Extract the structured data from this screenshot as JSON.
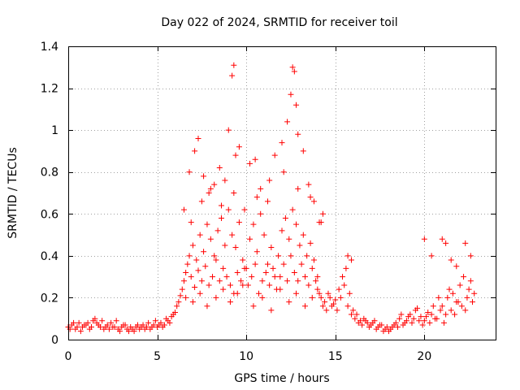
{
  "chart_data": {
    "type": "scatter",
    "title": "Day 022 of 2024, SRMTID for receiver toil",
    "xlabel": "GPS time / hours",
    "ylabel": "SRMTID / TECUs",
    "xlim": [
      0,
      24
    ],
    "ylim": [
      0,
      1.4
    ],
    "xticks": [
      0,
      5,
      10,
      15,
      20
    ],
    "xtick_labels": [
      "0",
      "5",
      "10",
      "15",
      "20"
    ],
    "yticks": [
      0,
      0.2,
      0.4,
      0.6,
      0.8,
      1.0,
      1.2,
      1.4
    ],
    "ytick_labels": [
      "0",
      "0.2",
      "0.4",
      "0.6",
      "0.8",
      "1",
      "1.2",
      "1.4"
    ],
    "grid": true,
    "marker": "+",
    "color": "#ff0000",
    "series": [
      {
        "name": "SRMTID",
        "x": [
          0.0,
          0.2,
          0.4,
          0.6,
          0.8,
          1.0,
          1.2,
          1.4,
          1.6,
          1.8,
          2.0,
          2.2,
          2.4,
          2.6,
          2.8,
          3.0,
          3.2,
          3.4,
          3.6,
          3.8,
          4.0,
          4.2,
          4.4,
          4.6,
          4.8,
          5.0,
          5.2,
          5.4,
          5.6,
          5.8,
          6.0,
          6.2,
          6.4,
          6.6,
          6.8,
          7.0,
          7.2,
          7.4,
          7.6,
          7.8,
          8.0,
          8.2,
          8.4,
          8.6,
          8.8,
          9.0,
          9.2,
          9.4,
          9.6,
          9.8,
          10.0,
          10.2,
          10.4,
          10.6,
          10.8,
          11.0,
          11.2,
          11.4,
          11.6,
          11.8,
          12.0,
          12.2,
          12.4,
          12.6,
          12.8,
          13.0,
          13.2,
          13.4,
          13.6,
          13.8,
          14.0,
          14.2,
          14.4,
          14.6,
          14.8,
          15.0,
          15.2,
          15.4,
          15.6,
          15.8,
          16.0,
          16.2,
          16.4,
          16.6,
          16.8,
          17.0,
          17.2,
          17.4,
          17.6,
          17.8,
          18.0,
          18.2,
          18.4,
          18.6,
          18.8,
          19.0,
          19.2,
          19.4,
          19.6,
          19.8,
          20.0,
          20.2,
          20.4,
          20.6,
          20.8,
          21.0,
          21.2,
          21.4,
          21.6,
          21.8,
          22.0,
          22.2,
          22.4,
          22.6,
          22.8,
          0.1,
          0.3,
          0.5,
          0.7,
          0.9,
          1.1,
          1.3,
          1.5,
          1.7,
          1.9,
          2.1,
          2.3,
          2.5,
          2.7,
          2.9,
          3.1,
          3.3,
          3.5,
          3.7,
          3.9,
          4.1,
          4.3,
          4.5,
          4.7,
          4.9,
          5.1,
          5.3,
          5.5,
          5.7,
          5.9,
          6.1,
          6.3,
          6.5,
          6.7,
          6.9,
          7.1,
          7.3,
          7.5,
          7.7,
          7.9,
          8.1,
          8.3,
          8.5,
          8.7,
          8.9,
          9.1,
          9.3,
          9.5,
          9.7,
          9.9,
          10.1,
          10.3,
          10.5,
          10.7,
          10.9,
          11.1,
          11.3,
          11.5,
          11.7,
          11.9,
          12.1,
          12.3,
          12.5,
          12.7,
          12.9,
          13.1,
          13.3,
          13.5,
          13.7,
          13.9,
          14.1,
          14.3,
          14.5,
          14.7,
          14.9,
          15.1,
          15.3,
          15.5,
          15.7,
          15.9,
          16.1,
          16.3,
          16.5,
          16.7,
          16.9,
          17.1,
          17.3,
          17.5,
          17.7,
          17.9,
          18.1,
          18.3,
          18.5,
          18.7,
          18.9,
          19.1,
          19.3,
          19.5,
          19.7,
          19.9,
          20.1,
          20.3,
          20.5,
          20.7,
          20.9,
          21.1,
          21.3,
          21.5,
          21.7,
          21.9,
          22.1,
          22.3,
          22.5,
          22.7,
          6.5,
          6.8,
          7.1,
          7.3,
          7.6,
          7.9,
          8.2,
          8.5,
          8.8,
          9.0,
          9.2,
          9.3,
          9.4,
          9.6,
          10.2,
          10.5,
          10.8,
          11.2,
          11.6,
          12.0,
          12.3,
          12.5,
          12.6,
          12.7,
          12.8,
          12.9,
          13.2,
          13.5,
          13.8,
          14.1,
          14.3,
          15.7,
          15.9,
          20.0,
          20.4,
          21.0,
          21.2,
          21.5,
          21.8,
          22.3,
          22.6,
          6.6,
          7.0,
          7.4,
          7.8,
          8.3,
          8.7,
          9.1,
          9.5,
          9.8,
          10.4,
          10.9,
          11.4,
          11.9,
          12.4,
          12.8,
          13.3,
          13.7,
          14.0,
          6.9,
          7.5,
          8.0,
          8.6,
          9.3,
          9.9,
          10.6,
          11.3,
          12.1,
          12.9,
          13.6,
          14.2
        ],
        "y": [
          0.06,
          0.07,
          0.05,
          0.08,
          0.06,
          0.07,
          0.05,
          0.09,
          0.08,
          0.06,
          0.05,
          0.07,
          0.08,
          0.06,
          0.05,
          0.06,
          0.07,
          0.04,
          0.05,
          0.06,
          0.05,
          0.07,
          0.06,
          0.05,
          0.07,
          0.06,
          0.08,
          0.07,
          0.09,
          0.11,
          0.13,
          0.18,
          0.24,
          0.32,
          0.4,
          0.45,
          0.38,
          0.5,
          0.42,
          0.55,
          0.48,
          0.4,
          0.52,
          0.58,
          0.45,
          0.62,
          0.5,
          0.44,
          0.56,
          0.38,
          0.34,
          0.48,
          0.55,
          0.42,
          0.6,
          0.5,
          0.36,
          0.44,
          0.3,
          0.4,
          0.52,
          0.58,
          0.48,
          0.62,
          0.55,
          0.45,
          0.5,
          0.4,
          0.46,
          0.38,
          0.3,
          0.2,
          0.18,
          0.22,
          0.16,
          0.19,
          0.24,
          0.3,
          0.34,
          0.22,
          0.14,
          0.12,
          0.09,
          0.1,
          0.08,
          0.07,
          0.09,
          0.06,
          0.07,
          0.05,
          0.04,
          0.06,
          0.08,
          0.1,
          0.07,
          0.09,
          0.12,
          0.1,
          0.15,
          0.11,
          0.09,
          0.13,
          0.12,
          0.1,
          0.2,
          0.16,
          0.12,
          0.24,
          0.22,
          0.18,
          0.26,
          0.3,
          0.2,
          0.28,
          0.22,
          0.05,
          0.08,
          0.06,
          0.04,
          0.07,
          0.08,
          0.06,
          0.1,
          0.07,
          0.09,
          0.06,
          0.05,
          0.06,
          0.09,
          0.04,
          0.07,
          0.05,
          0.06,
          0.04,
          0.07,
          0.06,
          0.05,
          0.08,
          0.06,
          0.09,
          0.07,
          0.06,
          0.1,
          0.08,
          0.12,
          0.16,
          0.21,
          0.28,
          0.36,
          0.3,
          0.25,
          0.33,
          0.28,
          0.35,
          0.26,
          0.3,
          0.38,
          0.28,
          0.34,
          0.3,
          0.26,
          0.22,
          0.32,
          0.28,
          0.34,
          0.26,
          0.3,
          0.36,
          0.22,
          0.28,
          0.32,
          0.26,
          0.34,
          0.24,
          0.3,
          0.36,
          0.28,
          0.4,
          0.32,
          0.28,
          0.36,
          0.3,
          0.26,
          0.34,
          0.28,
          0.22,
          0.16,
          0.14,
          0.2,
          0.17,
          0.14,
          0.2,
          0.26,
          0.16,
          0.12,
          0.1,
          0.08,
          0.07,
          0.09,
          0.06,
          0.08,
          0.05,
          0.07,
          0.04,
          0.06,
          0.05,
          0.07,
          0.06,
          0.12,
          0.08,
          0.11,
          0.08,
          0.14,
          0.09,
          0.07,
          0.11,
          0.08,
          0.16,
          0.1,
          0.14,
          0.08,
          0.2,
          0.14,
          0.12,
          0.18,
          0.16,
          0.14,
          0.24,
          0.18,
          0.62,
          0.8,
          0.9,
          0.96,
          0.78,
          0.7,
          0.74,
          0.82,
          0.76,
          1.0,
          1.26,
          1.31,
          0.88,
          0.92,
          0.84,
          0.86,
          0.72,
          0.66,
          0.88,
          0.94,
          1.04,
          1.17,
          1.3,
          1.28,
          1.12,
          0.98,
          0.9,
          0.74,
          0.66,
          0.56,
          0.6,
          0.4,
          0.38,
          0.48,
          0.4,
          0.48,
          0.46,
          0.38,
          0.35,
          0.46,
          0.4,
          0.2,
          0.18,
          0.22,
          0.16,
          0.2,
          0.24,
          0.18,
          0.22,
          0.26,
          0.16,
          0.2,
          0.14,
          0.24,
          0.18,
          0.22,
          0.16,
          0.2,
          0.24,
          0.56,
          0.66,
          0.72,
          0.64,
          0.7,
          0.62,
          0.68,
          0.76,
          0.8,
          0.72,
          0.68,
          0.56
        ]
      }
    ]
  }
}
